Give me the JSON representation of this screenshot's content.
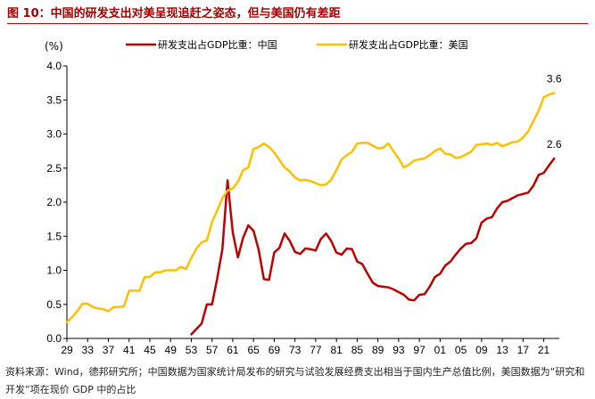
{
  "figure_title": "图 10：中国的研发支出对美呈现追赶之姿态，但与美国仍有差距",
  "source_note": "资料来源：Wind，德邦研究所；中国数据为国家统计局发布的研究与试验发展经费支出相当于国内生产总值比例，美国数据为“研究和开发”项在现价 GDP 中的占比",
  "chart_data": {
    "type": "line",
    "title": "",
    "ylabel": "(%)",
    "xlabel": "",
    "ylim": [
      0.0,
      4.0
    ],
    "yticks": [
      "0.0",
      "0.5",
      "1.0",
      "1.5",
      "2.0",
      "2.5",
      "3.0",
      "3.5",
      "4.0"
    ],
    "xlim": [
      1929,
      2024
    ],
    "xticks": [
      "29",
      "33",
      "37",
      "41",
      "45",
      "49",
      "53",
      "57",
      "61",
      "65",
      "69",
      "73",
      "77",
      "81",
      "85",
      "89",
      "93",
      "97",
      "01",
      "05",
      "09",
      "13",
      "17",
      "21"
    ],
    "legend_position": "top",
    "series": [
      {
        "name": "研发支出占GDP比重：中国",
        "color": "#c00000",
        "end_label": "2.6",
        "x": [
          1953,
          1955,
          1956,
          1957,
          1958,
          1959,
          1960,
          1961,
          1962,
          1963,
          1964,
          1965,
          1966,
          1967,
          1968,
          1969,
          1970,
          1971,
          1972,
          1973,
          1974,
          1975,
          1976,
          1977,
          1978,
          1979,
          1980,
          1981,
          1982,
          1983,
          1984,
          1985,
          1986,
          1987,
          1988,
          1989,
          1990,
          1991,
          1992,
          1993,
          1994,
          1995,
          1996,
          1997,
          1998,
          1999,
          2000,
          2001,
          2002,
          2003,
          2004,
          2005,
          2006,
          2007,
          2008,
          2009,
          2010,
          2011,
          2012,
          2013,
          2014,
          2015,
          2016,
          2017,
          2018,
          2019,
          2020,
          2021,
          2022,
          2023
        ],
        "values": [
          0.06,
          0.22,
          0.5,
          0.5,
          0.88,
          1.31,
          2.32,
          1.56,
          1.19,
          1.48,
          1.66,
          1.58,
          1.3,
          0.87,
          0.86,
          1.26,
          1.33,
          1.54,
          1.43,
          1.27,
          1.24,
          1.32,
          1.31,
          1.29,
          1.46,
          1.54,
          1.43,
          1.26,
          1.23,
          1.32,
          1.31,
          1.13,
          1.09,
          0.95,
          0.82,
          0.77,
          0.76,
          0.75,
          0.72,
          0.68,
          0.64,
          0.57,
          0.56,
          0.64,
          0.65,
          0.76,
          0.9,
          0.95,
          1.07,
          1.13,
          1.23,
          1.32,
          1.39,
          1.4,
          1.47,
          1.7,
          1.76,
          1.78,
          1.91,
          2.0,
          2.02,
          2.06,
          2.1,
          2.12,
          2.14,
          2.24,
          2.4,
          2.43,
          2.54,
          2.64
        ]
      },
      {
        "name": "研发支出占GDP比重：美国",
        "color": "#ffc000",
        "end_label": "3.6",
        "x": [
          1929,
          1930,
          1931,
          1932,
          1933,
          1934,
          1935,
          1936,
          1937,
          1938,
          1939,
          1940,
          1941,
          1942,
          1943,
          1944,
          1945,
          1946,
          1947,
          1948,
          1949,
          1950,
          1951,
          1952,
          1953,
          1954,
          1955,
          1956,
          1957,
          1958,
          1959,
          1960,
          1961,
          1962,
          1963,
          1964,
          1965,
          1966,
          1967,
          1968,
          1969,
          1970,
          1971,
          1972,
          1973,
          1974,
          1975,
          1976,
          1977,
          1978,
          1979,
          1980,
          1981,
          1982,
          1983,
          1984,
          1985,
          1986,
          1987,
          1988,
          1989,
          1990,
          1991,
          1992,
          1993,
          1994,
          1995,
          1996,
          1997,
          1998,
          1999,
          2000,
          2001,
          2002,
          2003,
          2004,
          2005,
          2006,
          2007,
          2008,
          2009,
          2010,
          2011,
          2012,
          2013,
          2014,
          2015,
          2016,
          2017,
          2018,
          2019,
          2020,
          2021,
          2022,
          2023
        ],
        "values": [
          0.24,
          0.31,
          0.4,
          0.51,
          0.51,
          0.46,
          0.44,
          0.43,
          0.4,
          0.46,
          0.46,
          0.47,
          0.7,
          0.7,
          0.7,
          0.9,
          0.9,
          0.97,
          0.97,
          1.0,
          1.0,
          1.0,
          1.05,
          1.02,
          1.18,
          1.32,
          1.41,
          1.44,
          1.71,
          1.88,
          2.06,
          2.17,
          2.2,
          2.3,
          2.47,
          2.51,
          2.78,
          2.81,
          2.86,
          2.81,
          2.73,
          2.62,
          2.51,
          2.45,
          2.36,
          2.32,
          2.33,
          2.31,
          2.28,
          2.25,
          2.26,
          2.33,
          2.47,
          2.63,
          2.69,
          2.74,
          2.86,
          2.87,
          2.87,
          2.83,
          2.79,
          2.8,
          2.86,
          2.75,
          2.64,
          2.51,
          2.55,
          2.61,
          2.63,
          2.64,
          2.69,
          2.75,
          2.79,
          2.71,
          2.7,
          2.65,
          2.66,
          2.7,
          2.74,
          2.84,
          2.85,
          2.86,
          2.84,
          2.87,
          2.82,
          2.85,
          2.88,
          2.89,
          2.95,
          3.04,
          3.19,
          3.34,
          3.54,
          3.58,
          3.6
        ]
      }
    ]
  }
}
